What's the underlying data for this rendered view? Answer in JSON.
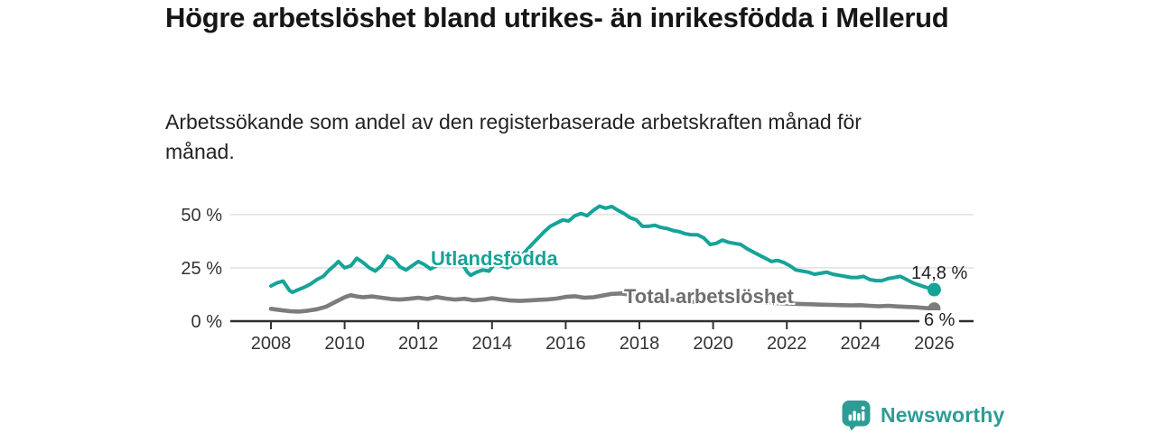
{
  "header": {
    "title": "Högre arbetslöshet bland utrikes- än inrikesfödda i Mellerud",
    "subtitle": "Arbetssökande som andel av den registerbaserade arbetskraften månad för månad."
  },
  "chart_data": {
    "type": "line",
    "title": "Högre arbetslöshet bland utrikes- än inrikesfödda i Mellerud",
    "subtitle": "Arbetssökande som andel av den registerbaserade arbetskraften månad för månad.",
    "xlabel": "",
    "ylabel": "",
    "x_range": [
      2008,
      2026
    ],
    "ylim": [
      0,
      55
    ],
    "grid": "horizontal",
    "legend_position": "inline-labels",
    "x_ticks": [
      2008,
      2010,
      2012,
      2014,
      2016,
      2018,
      2020,
      2022,
      2024,
      2026
    ],
    "y_ticks": [
      {
        "value": 0,
        "label": "0 %"
      },
      {
        "value": 25,
        "label": "25 %"
      },
      {
        "value": 50,
        "label": "50 %"
      }
    ],
    "series": [
      {
        "name": "Utlandsfödda",
        "color": "#16A398",
        "end_label": "14,8 %",
        "end_value": 14.8,
        "points": [
          [
            2008.0,
            16.5
          ],
          [
            2008.17,
            18.0
          ],
          [
            2008.33,
            18.8
          ],
          [
            2008.5,
            14.5
          ],
          [
            2008.58,
            13.5
          ],
          [
            2008.75,
            14.8
          ],
          [
            2008.92,
            16.0
          ],
          [
            2009.08,
            17.5
          ],
          [
            2009.25,
            19.5
          ],
          [
            2009.42,
            21.0
          ],
          [
            2009.58,
            24.0
          ],
          [
            2009.75,
            26.5
          ],
          [
            2009.83,
            28.0
          ],
          [
            2010.0,
            25.0
          ],
          [
            2010.17,
            26.0
          ],
          [
            2010.33,
            29.5
          ],
          [
            2010.5,
            27.5
          ],
          [
            2010.67,
            25.0
          ],
          [
            2010.83,
            23.5
          ],
          [
            2011.0,
            26.0
          ],
          [
            2011.17,
            30.5
          ],
          [
            2011.33,
            29.0
          ],
          [
            2011.5,
            25.5
          ],
          [
            2011.67,
            24.0
          ],
          [
            2011.83,
            26.0
          ],
          [
            2012.0,
            28.0
          ],
          [
            2012.17,
            26.5
          ],
          [
            2012.33,
            24.5
          ],
          [
            2012.5,
            26.0
          ],
          [
            2012.67,
            28.5
          ],
          [
            2012.83,
            30.5
          ],
          [
            2013.0,
            29.5
          ],
          [
            2013.17,
            27.5
          ],
          [
            2013.33,
            23.0
          ],
          [
            2013.42,
            21.5
          ],
          [
            2013.58,
            23.0
          ],
          [
            2013.75,
            24.0
          ],
          [
            2013.92,
            23.5
          ],
          [
            2014.08,
            27.0
          ],
          [
            2014.25,
            26.0
          ],
          [
            2014.42,
            25.0
          ],
          [
            2014.58,
            26.5
          ],
          [
            2014.75,
            29.5
          ],
          [
            2014.92,
            33.0
          ],
          [
            2015.08,
            36.0
          ],
          [
            2015.25,
            39.0
          ],
          [
            2015.42,
            42.0
          ],
          [
            2015.58,
            44.5
          ],
          [
            2015.75,
            46.0
          ],
          [
            2015.92,
            47.5
          ],
          [
            2016.08,
            47.0
          ],
          [
            2016.25,
            49.5
          ],
          [
            2016.42,
            50.5
          ],
          [
            2016.58,
            49.5
          ],
          [
            2016.75,
            52.0
          ],
          [
            2016.92,
            54.0
          ],
          [
            2017.08,
            53.0
          ],
          [
            2017.25,
            53.8
          ],
          [
            2017.42,
            52.0
          ],
          [
            2017.58,
            50.5
          ],
          [
            2017.75,
            48.5
          ],
          [
            2017.92,
            47.5
          ],
          [
            2018.08,
            44.5
          ],
          [
            2018.25,
            44.5
          ],
          [
            2018.42,
            45.0
          ],
          [
            2018.58,
            44.0
          ],
          [
            2018.75,
            43.5
          ],
          [
            2018.92,
            42.5
          ],
          [
            2019.08,
            42.0
          ],
          [
            2019.25,
            41.0
          ],
          [
            2019.42,
            40.5
          ],
          [
            2019.58,
            40.5
          ],
          [
            2019.75,
            39.0
          ],
          [
            2019.92,
            36.0
          ],
          [
            2020.08,
            36.5
          ],
          [
            2020.25,
            38.0
          ],
          [
            2020.42,
            37.0
          ],
          [
            2020.58,
            36.5
          ],
          [
            2020.75,
            36.0
          ],
          [
            2020.92,
            34.0
          ],
          [
            2021.08,
            32.5
          ],
          [
            2021.25,
            31.0
          ],
          [
            2021.42,
            29.5
          ],
          [
            2021.58,
            28.0
          ],
          [
            2021.75,
            28.5
          ],
          [
            2021.92,
            27.5
          ],
          [
            2022.08,
            26.0
          ],
          [
            2022.25,
            24.0
          ],
          [
            2022.42,
            23.5
          ],
          [
            2022.58,
            23.0
          ],
          [
            2022.75,
            22.0
          ],
          [
            2022.92,
            22.5
          ],
          [
            2023.08,
            23.0
          ],
          [
            2023.25,
            22.0
          ],
          [
            2023.42,
            21.5
          ],
          [
            2023.58,
            21.0
          ],
          [
            2023.75,
            20.5
          ],
          [
            2023.92,
            20.5
          ],
          [
            2024.08,
            21.0
          ],
          [
            2024.25,
            19.5
          ],
          [
            2024.42,
            19.0
          ],
          [
            2024.58,
            19.0
          ],
          [
            2024.75,
            20.0
          ],
          [
            2024.92,
            20.5
          ],
          [
            2025.08,
            21.0
          ],
          [
            2025.25,
            19.5
          ],
          [
            2025.42,
            18.0
          ],
          [
            2025.58,
            17.0
          ],
          [
            2025.75,
            16.0
          ],
          [
            2025.92,
            15.2
          ],
          [
            2026.0,
            14.8
          ]
        ]
      },
      {
        "name": "Total arbetslöshet",
        "color": "#7C7C7C",
        "end_label": "6 %",
        "end_value": 5.9,
        "points": [
          [
            2008.0,
            5.8
          ],
          [
            2008.25,
            5.2
          ],
          [
            2008.5,
            4.7
          ],
          [
            2008.75,
            4.5
          ],
          [
            2009.0,
            4.9
          ],
          [
            2009.25,
            5.6
          ],
          [
            2009.5,
            6.8
          ],
          [
            2009.75,
            9.0
          ],
          [
            2010.0,
            11.2
          ],
          [
            2010.17,
            12.2
          ],
          [
            2010.33,
            11.6
          ],
          [
            2010.5,
            11.2
          ],
          [
            2010.75,
            11.6
          ],
          [
            2011.0,
            11.0
          ],
          [
            2011.25,
            10.4
          ],
          [
            2011.5,
            10.1
          ],
          [
            2011.75,
            10.5
          ],
          [
            2012.0,
            11.0
          ],
          [
            2012.25,
            10.4
          ],
          [
            2012.5,
            11.3
          ],
          [
            2012.75,
            10.6
          ],
          [
            2013.0,
            10.1
          ],
          [
            2013.25,
            10.5
          ],
          [
            2013.5,
            9.8
          ],
          [
            2013.75,
            10.1
          ],
          [
            2014.0,
            10.8
          ],
          [
            2014.25,
            10.2
          ],
          [
            2014.5,
            9.7
          ],
          [
            2014.75,
            9.5
          ],
          [
            2015.0,
            9.7
          ],
          [
            2015.25,
            10.0
          ],
          [
            2015.5,
            10.2
          ],
          [
            2015.75,
            10.6
          ],
          [
            2016.0,
            11.4
          ],
          [
            2016.25,
            11.7
          ],
          [
            2016.5,
            11.0
          ],
          [
            2016.75,
            11.2
          ],
          [
            2017.0,
            12.0
          ],
          [
            2017.25,
            12.8
          ],
          [
            2017.5,
            13.0
          ],
          [
            2017.75,
            12.4
          ],
          [
            2018.0,
            11.8
          ],
          [
            2018.5,
            10.8
          ],
          [
            2019.0,
            9.8
          ],
          [
            2019.5,
            9.0
          ],
          [
            2020.0,
            9.5
          ],
          [
            2020.33,
            10.3
          ],
          [
            2020.67,
            9.8
          ],
          [
            2021.0,
            9.2
          ],
          [
            2021.5,
            8.7
          ],
          [
            2022.0,
            8.3
          ],
          [
            2022.33,
            8.1
          ],
          [
            2022.67,
            7.9
          ],
          [
            2023.0,
            7.7
          ],
          [
            2023.25,
            7.6
          ],
          [
            2023.5,
            7.5
          ],
          [
            2023.75,
            7.4
          ],
          [
            2024.0,
            7.5
          ],
          [
            2024.25,
            7.2
          ],
          [
            2024.5,
            7.0
          ],
          [
            2024.75,
            7.2
          ],
          [
            2025.0,
            6.9
          ],
          [
            2025.25,
            6.7
          ],
          [
            2025.5,
            6.5
          ],
          [
            2025.75,
            6.2
          ],
          [
            2026.0,
            5.9
          ]
        ]
      }
    ],
    "colors": {
      "grid": "#DBDBDB",
      "axis": "#2D2D2D",
      "tick_text": "#333333"
    }
  },
  "footer": {
    "brand": "Newsworthy",
    "brand_color": "#2E9C95",
    "logo_icon": "bar-chart-pin-icon"
  }
}
